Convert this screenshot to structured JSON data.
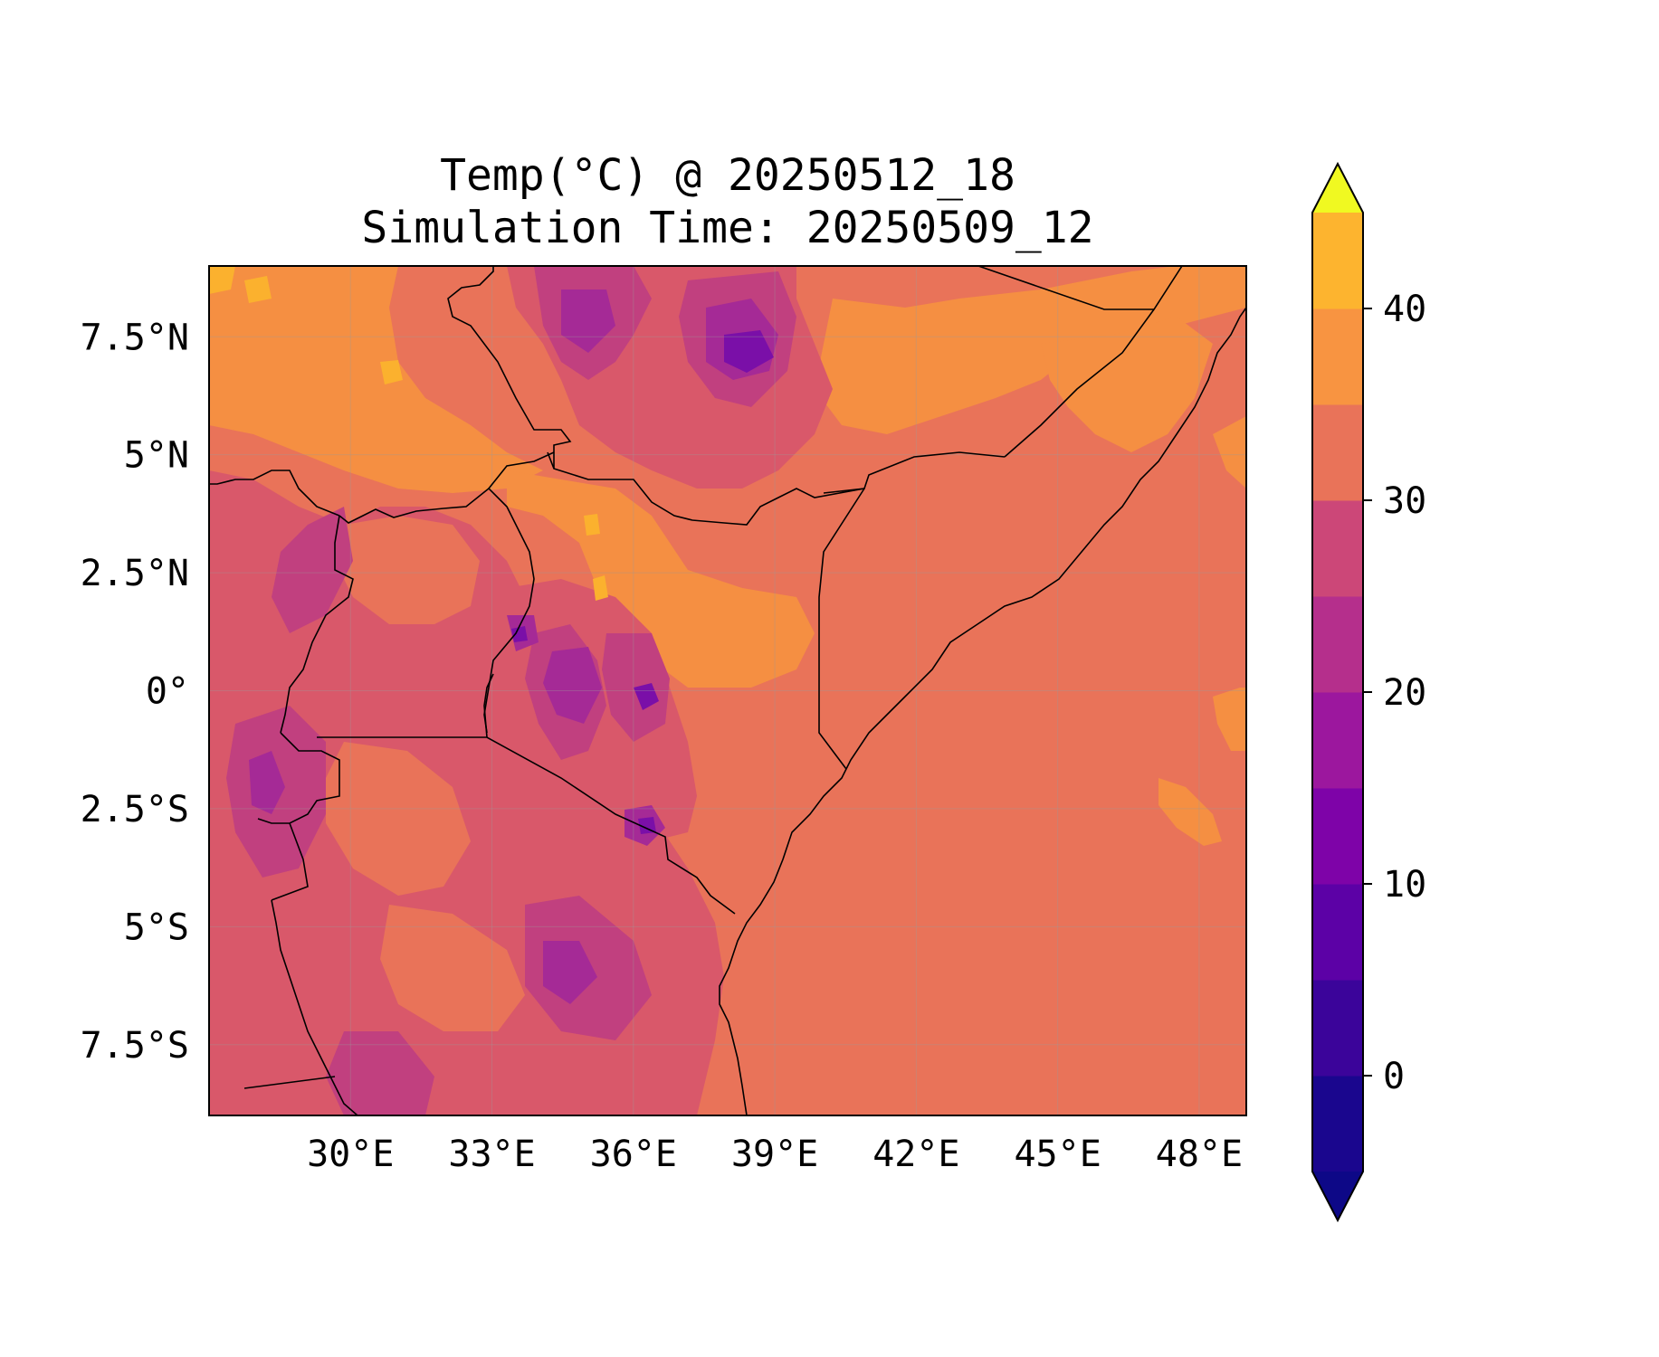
{
  "title": {
    "line1": "Temp(°C) @ 20250512_18",
    "line2": "Simulation Time: 20250509_12"
  },
  "map": {
    "region": "East Africa",
    "lon_range": [
      27.0,
      49.0
    ],
    "lat_range": [
      -9.0,
      9.0
    ],
    "x_ticks": [
      {
        "value": 30,
        "label": "30°E"
      },
      {
        "value": 33,
        "label": "33°E"
      },
      {
        "value": 36,
        "label": "36°E"
      },
      {
        "value": 39,
        "label": "39°E"
      },
      {
        "value": 42,
        "label": "42°E"
      },
      {
        "value": 45,
        "label": "45°E"
      },
      {
        "value": 48,
        "label": "48°E"
      }
    ],
    "y_ticks": [
      {
        "value": 7.5,
        "label": "7.5°N"
      },
      {
        "value": 5,
        "label": "5°N"
      },
      {
        "value": 2.5,
        "label": "2.5°N"
      },
      {
        "value": 0,
        "label": "0°"
      },
      {
        "value": -2.5,
        "label": "2.5°S"
      },
      {
        "value": -5,
        "label": "5°S"
      },
      {
        "value": -7.5,
        "label": "7.5°S"
      }
    ],
    "ocean_color": "#e97359",
    "gridlines": true
  },
  "colorbar": {
    "levels": [
      -5,
      0,
      5,
      10,
      15,
      20,
      25,
      30,
      35,
      40,
      45
    ],
    "colors": [
      "#0d0887",
      "#2a0593",
      "#5302a3",
      "#8b0aa5",
      "#b83289",
      "#db5c68",
      "#e97359",
      "#f48849",
      "#febc2a",
      "#f0f921"
    ],
    "colors_full": [
      "#1a068e",
      "#3b049a",
      "#5c01a6",
      "#7e03a8",
      "#9c179e",
      "#b52f8c",
      "#cc4778",
      "#e97359",
      "#f89441",
      "#fdb42f",
      "#f0f921"
    ],
    "ticks": [
      {
        "value": 0,
        "label": "0"
      },
      {
        "value": 10,
        "label": "10"
      },
      {
        "value": 20,
        "label": "20"
      },
      {
        "value": 30,
        "label": "30"
      },
      {
        "value": 40,
        "label": "40"
      }
    ],
    "extend": "both",
    "under_color": "#0d0887",
    "over_color": "#f0f921"
  },
  "regions": {
    "hot_north": "#f58f42",
    "warm": "#e97359",
    "mild": "#d9586a",
    "cool": "#c1407f",
    "cold": "#a52a96",
    "coldest": "#7a0fa8",
    "hottest": "#fbb12e"
  }
}
